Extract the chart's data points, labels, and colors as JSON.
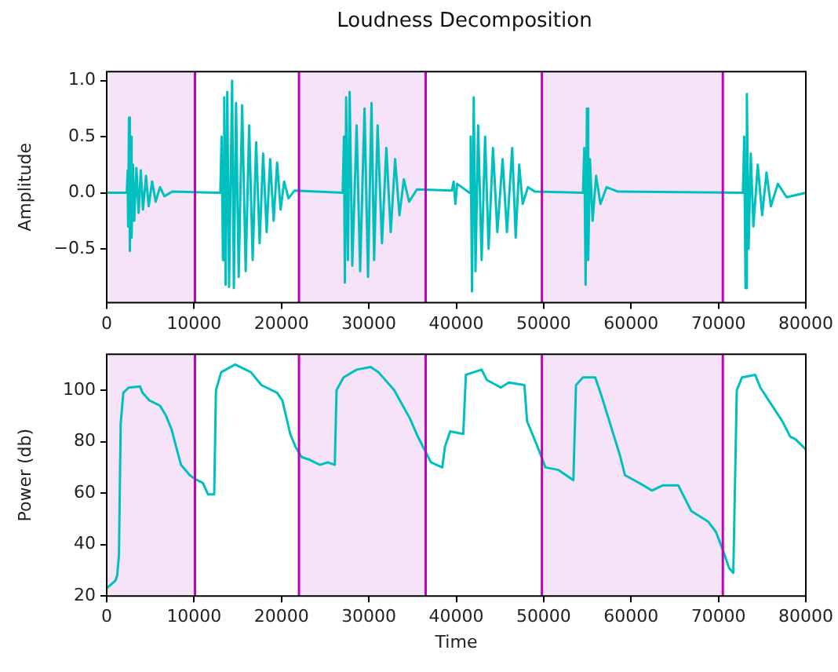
{
  "chart_data": [
    {
      "type": "line",
      "title": "Loudness Decomposition",
      "ylabel": "Amplitude",
      "xlim": [
        0,
        80000
      ],
      "xticks": [
        0,
        10000,
        20000,
        30000,
        40000,
        50000,
        60000,
        70000,
        80000
      ],
      "ylim": [
        -0.98,
        1.08
      ],
      "yticks": [
        {
          "value": -0.5,
          "label": "−0.5"
        },
        {
          "value": 0,
          "label": "0.0"
        },
        {
          "value": 0.5,
          "label": "0.5"
        },
        {
          "value": 1,
          "label": "1.0"
        }
      ],
      "grid": false,
      "legend": false,
      "marker": "none",
      "line_style": "solid",
      "series": [
        {
          "color": "#00bfbf",
          "x": [
            0,
            2300,
            2400,
            2450,
            2550,
            2650,
            2750,
            2850,
            3000,
            3150,
            3400,
            3650,
            3900,
            4150,
            4500,
            4800,
            5200,
            5600,
            6100,
            6600,
            7500,
            13000,
            13150,
            13300,
            13450,
            13600,
            13800,
            14000,
            14350,
            14550,
            14800,
            15100,
            15500,
            15900,
            16300,
            16700,
            17100,
            17500,
            17900,
            18300,
            18700,
            19100,
            19500,
            19900,
            20300,
            20800,
            21500,
            27000,
            27150,
            27250,
            27400,
            27600,
            27800,
            28100,
            28600,
            29000,
            29500,
            29900,
            30300,
            30600,
            31000,
            31500,
            32000,
            32500,
            33000,
            33500,
            34000,
            34600,
            35500,
            39500,
            39700,
            39900,
            40100,
            41500,
            41650,
            41800,
            42000,
            42200,
            42500,
            42900,
            43300,
            43700,
            44200,
            44700,
            45300,
            45800,
            46400,
            46800,
            47200,
            47600,
            48200,
            49000,
            54500,
            54650,
            54800,
            54950,
            55100,
            55300,
            55600,
            56000,
            56500,
            57200,
            58500,
            72800,
            72950,
            73100,
            73250,
            73450,
            73700,
            74000,
            74500,
            75000,
            75500,
            76000,
            76800,
            77800,
            80000
          ],
          "values": [
            0,
            0,
            0.2,
            -0.3,
            0.67,
            -0.52,
            0.5,
            -0.4,
            0.25,
            -0.25,
            0.22,
            -0.18,
            0.2,
            -0.15,
            0.15,
            -0.12,
            0.1,
            -0.08,
            0.05,
            -0.03,
            0.01,
            0,
            0.5,
            -0.6,
            0.85,
            -0.82,
            0.9,
            -0.84,
            1.0,
            -0.85,
            0.8,
            -0.75,
            0.78,
            -0.7,
            0.6,
            -0.6,
            0.45,
            -0.45,
            0.35,
            -0.35,
            0.3,
            -0.25,
            0.27,
            -0.15,
            0.1,
            -0.05,
            0.02,
            0,
            0.5,
            -0.8,
            0.85,
            -0.6,
            0.9,
            -0.65,
            0.6,
            -0.7,
            0.75,
            -0.75,
            0.8,
            -0.6,
            0.6,
            -0.45,
            0.4,
            -0.35,
            0.3,
            -0.2,
            0.12,
            -0.08,
            0.03,
            0.02,
            0.1,
            -0.1,
            0.08,
            0,
            0.5,
            -0.88,
            0.85,
            -0.7,
            0.6,
            -0.6,
            0.5,
            -0.5,
            0.4,
            -0.35,
            0.3,
            -0.35,
            0.4,
            -0.4,
            0.25,
            -0.1,
            0.05,
            0.01,
            0,
            0.4,
            -0.82,
            0.75,
            -0.6,
            0.3,
            -0.25,
            0.15,
            -0.1,
            0.05,
            0.01,
            0,
            0.5,
            -0.85,
            0.88,
            -0.5,
            0.35,
            -0.3,
            0.25,
            -0.2,
            0.18,
            -0.12,
            0.08,
            -0.04,
            0
          ]
        }
      ],
      "bands": [
        {
          "axis": "x",
          "from": 0,
          "to": 10100,
          "color": "#f7e3f7"
        },
        {
          "axis": "x",
          "from": 22000,
          "to": 36500,
          "color": "#f7e3f7"
        },
        {
          "axis": "x",
          "from": 49800,
          "to": 70500,
          "color": "#f7e3f7"
        }
      ],
      "ref_lines": [
        {
          "axis": "x",
          "value": 10100,
          "color": "#bf00bf"
        },
        {
          "axis": "x",
          "value": 22000,
          "color": "#bf00bf"
        },
        {
          "axis": "x",
          "value": 36500,
          "color": "#bf00bf"
        },
        {
          "axis": "x",
          "value": 49800,
          "color": "#bf00bf"
        },
        {
          "axis": "x",
          "value": 70500,
          "color": "#bf00bf"
        }
      ]
    },
    {
      "type": "line",
      "xlabel": "Time",
      "ylabel": "Power (db)",
      "xlim": [
        0,
        80000
      ],
      "xticks": [
        0,
        10000,
        20000,
        30000,
        40000,
        50000,
        60000,
        70000,
        80000
      ],
      "ylim": [
        20,
        114
      ],
      "yticks": [
        20,
        40,
        60,
        80,
        100
      ],
      "grid": false,
      "legend": false,
      "marker": "none",
      "line_style": "solid",
      "series": [
        {
          "color": "#00bfbf",
          "x": [
            0,
            1000,
            1200,
            1400,
            1600,
            1900,
            2500,
            3800,
            4100,
            4900,
            6100,
            6800,
            7400,
            8100,
            8500,
            9500,
            10100,
            11000,
            11600,
            12300,
            12500,
            13100,
            14700,
            16500,
            17700,
            19500,
            20100,
            21000,
            21600,
            22300,
            23200,
            24400,
            25300,
            26100,
            26300,
            27100,
            28600,
            30200,
            31100,
            32900,
            34700,
            35600,
            36500,
            37100,
            38400,
            38700,
            39300,
            40800,
            41100,
            42900,
            43500,
            45100,
            46000,
            47800,
            48100,
            49300,
            50200,
            51700,
            53400,
            53700,
            54500,
            55900,
            56600,
            58700,
            59300,
            60900,
            62400,
            63600,
            65400,
            66900,
            68800,
            69700,
            70600,
            71200,
            71700,
            72100,
            72700,
            74200,
            74800,
            77300,
            78200,
            78800,
            80000
          ],
          "values": [
            23,
            26,
            28,
            36,
            87,
            99,
            101,
            101.5,
            99,
            96,
            94,
            90,
            85,
            76,
            71,
            67,
            65.5,
            64,
            59.5,
            59.5,
            100,
            107,
            110,
            107,
            102,
            99,
            96,
            83,
            78,
            74,
            73,
            71,
            72,
            71,
            100,
            105,
            108,
            109,
            107,
            100,
            89,
            82,
            76,
            72,
            70,
            78,
            84,
            83,
            106,
            108,
            104,
            101,
            103,
            102,
            88,
            78,
            70,
            69,
            65,
            102,
            105,
            105,
            98,
            75,
            67,
            64,
            61,
            63,
            63,
            53,
            49,
            45,
            37,
            31,
            29,
            100,
            105,
            106,
            101,
            88,
            82,
            81,
            77
          ]
        }
      ],
      "bands": [
        {
          "axis": "x",
          "from": 0,
          "to": 10100,
          "color": "#f7e3f7"
        },
        {
          "axis": "x",
          "from": 22000,
          "to": 36500,
          "color": "#f7e3f7"
        },
        {
          "axis": "x",
          "from": 49800,
          "to": 70500,
          "color": "#f7e3f7"
        }
      ],
      "ref_lines": [
        {
          "axis": "x",
          "value": 10100,
          "color": "#bf00bf"
        },
        {
          "axis": "x",
          "value": 22000,
          "color": "#bf00bf"
        },
        {
          "axis": "x",
          "value": 36500,
          "color": "#bf00bf"
        },
        {
          "axis": "x",
          "value": 49800,
          "color": "#bf00bf"
        },
        {
          "axis": "x",
          "value": 70500,
          "color": "#bf00bf"
        }
      ]
    }
  ]
}
